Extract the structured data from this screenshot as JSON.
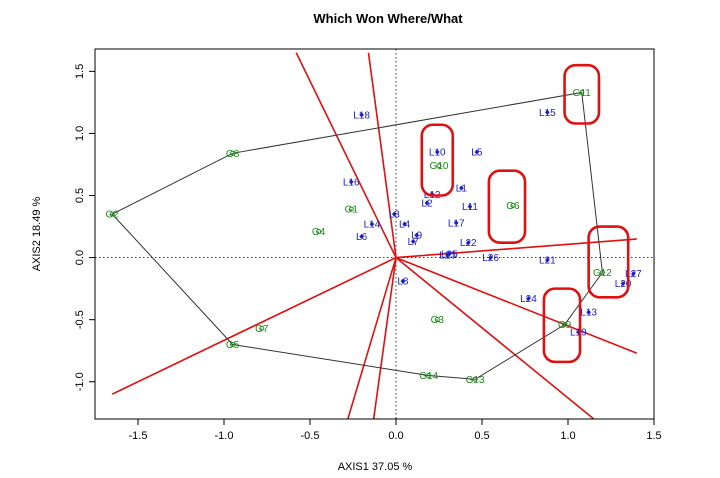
{
  "chart_data": {
    "type": "scatter",
    "title": "Which Won Where/What",
    "xlabel": "AXIS1 37.05 %",
    "ylabel": "AXIS2 18.49 %",
    "xlim": [
      -1.75,
      1.5
    ],
    "ylim": [
      -1.3,
      1.68
    ],
    "xticks": [
      -1.5,
      -1.0,
      -0.5,
      0.0,
      0.5,
      1.0,
      1.5
    ],
    "xtick_labels": [
      "-1.5",
      "-1.0",
      "-0.5",
      "0.0",
      "0.5",
      "1.0",
      "1.5"
    ],
    "yticks": [
      -1.0,
      -0.5,
      0.0,
      0.5,
      1.0,
      1.5
    ],
    "ytick_labels": [
      "-1.0",
      "-0.5",
      "0.0",
      "0.5",
      "1.0",
      "1.5"
    ],
    "genotypes": [
      {
        "label": "G1",
        "x": -0.26,
        "y": 0.39
      },
      {
        "label": "G2",
        "x": -1.65,
        "y": 0.35
      },
      {
        "label": "G3",
        "x": 0.24,
        "y": -0.5
      },
      {
        "label": "G4",
        "x": -0.45,
        "y": 0.21
      },
      {
        "label": "G5",
        "x": -0.95,
        "y": -0.7
      },
      {
        "label": "G6",
        "x": 0.68,
        "y": 0.42
      },
      {
        "label": "G7",
        "x": -0.78,
        "y": -0.57
      },
      {
        "label": "G8",
        "x": -0.95,
        "y": 0.84
      },
      {
        "label": "G9",
        "x": 0.98,
        "y": -0.54
      },
      {
        "label": "G10",
        "x": 0.25,
        "y": 0.74
      },
      {
        "label": "G11",
        "x": 1.08,
        "y": 1.33
      },
      {
        "label": "G12",
        "x": 1.2,
        "y": -0.12
      },
      {
        "label": "G13",
        "x": 0.46,
        "y": -0.98
      },
      {
        "label": "G14",
        "x": 0.19,
        "y": -0.95
      }
    ],
    "environments": [
      {
        "label": "L1",
        "x": 0.38,
        "y": 0.56
      },
      {
        "label": "L2",
        "x": 0.18,
        "y": 0.44
      },
      {
        "label": "L3",
        "x": -0.01,
        "y": 0.35
      },
      {
        "label": "L4",
        "x": 0.05,
        "y": 0.27
      },
      {
        "label": "L5",
        "x": 0.47,
        "y": 0.85
      },
      {
        "label": "L6",
        "x": -0.2,
        "y": 0.17
      },
      {
        "label": "L7",
        "x": 0.1,
        "y": 0.13
      },
      {
        "label": "L8",
        "x": 0.04,
        "y": -0.19
      },
      {
        "label": "L9",
        "x": 0.12,
        "y": 0.18
      },
      {
        "label": "L10",
        "x": 0.24,
        "y": 0.85
      },
      {
        "label": "L11",
        "x": 0.43,
        "y": 0.41
      },
      {
        "label": "L12",
        "x": 0.21,
        "y": 0.51
      },
      {
        "label": "L13",
        "x": 1.12,
        "y": -0.44
      },
      {
        "label": "L14",
        "x": -0.14,
        "y": 0.27
      },
      {
        "label": "L15",
        "x": 0.88,
        "y": 1.17
      },
      {
        "label": "L16",
        "x": -0.26,
        "y": 0.61
      },
      {
        "label": "L17",
        "x": 0.35,
        "y": 0.28
      },
      {
        "label": "L18",
        "x": -0.2,
        "y": 1.15
      },
      {
        "label": "L19",
        "x": 1.06,
        "y": -0.6
      },
      {
        "label": "L20",
        "x": 1.32,
        "y": -0.21
      },
      {
        "label": "L21",
        "x": 0.88,
        "y": -0.02
      },
      {
        "label": "L22",
        "x": 0.42,
        "y": 0.12
      },
      {
        "label": "L23",
        "x": 0.3,
        "y": 0.02
      },
      {
        "label": "L24",
        "x": 0.77,
        "y": -0.33
      },
      {
        "label": "L25",
        "x": 0.31,
        "y": 0.03
      },
      {
        "label": "L26",
        "x": 0.55,
        "y": 0.0
      },
      {
        "label": "L27",
        "x": 1.38,
        "y": -0.13
      }
    ],
    "polygon": [
      "G11",
      "G12",
      "G9",
      "G13",
      "G14",
      "G5",
      "G2",
      "G8"
    ],
    "rays": [
      [
        -1.65,
        -1.1
      ],
      [
        -0.58,
        1.65
      ],
      [
        -0.16,
        1.65
      ],
      [
        1.4,
        0.15
      ],
      [
        1.4,
        -0.77
      ],
      [
        1.15,
        -1.3
      ],
      [
        -0.13,
        -1.3
      ],
      [
        -0.28,
        -1.3
      ]
    ],
    "highlight_groups": [
      {
        "x": [
          0.15,
          0.33
        ],
        "y": [
          0.5,
          1.07
        ]
      },
      {
        "x": [
          0.54,
          0.75
        ],
        "y": [
          0.12,
          0.7
        ]
      },
      {
        "x": [
          0.98,
          1.18
        ],
        "y": [
          1.08,
          1.55
        ]
      },
      {
        "x": [
          1.12,
          1.35
        ],
        "y": [
          -0.32,
          0.25
        ]
      },
      {
        "x": [
          0.86,
          1.07
        ],
        "y": [
          -0.84,
          -0.25
        ]
      }
    ],
    "colors": {
      "genotype": "#1a8c1a",
      "environment": "#1c1ccc",
      "rays": "#e01010",
      "polygon": "#333333",
      "highlight": "#e01010"
    }
  }
}
